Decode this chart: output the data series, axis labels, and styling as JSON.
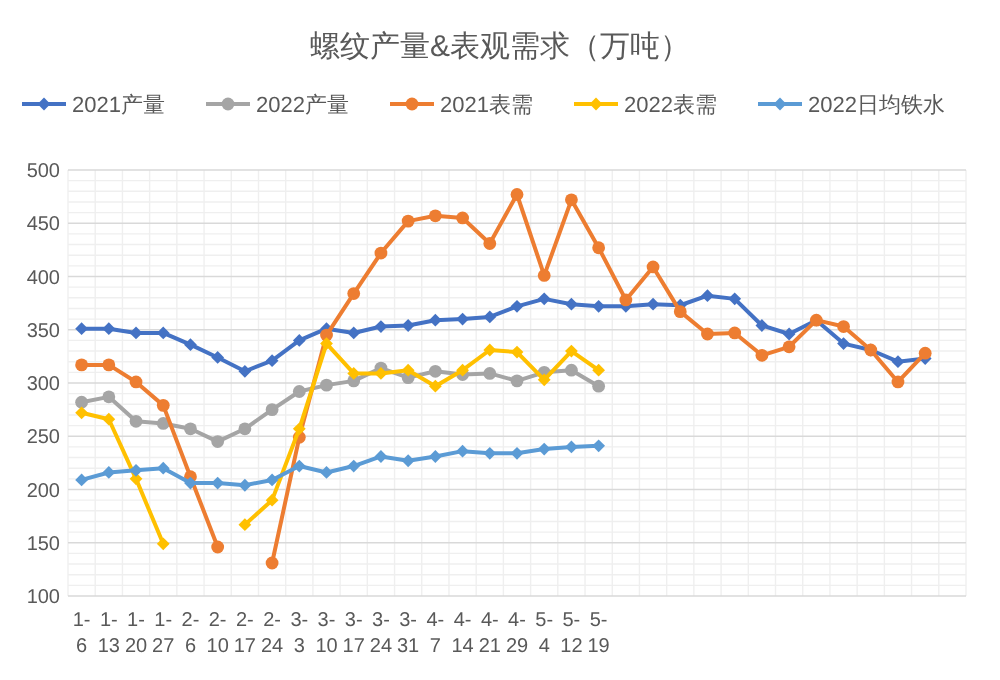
{
  "chart_data": {
    "type": "line",
    "title": "螺纹产量&表观需求（万吨）",
    "categories": [
      "1-6",
      "1-13",
      "1-20",
      "1-27",
      "2-6",
      "2-10",
      "2-17",
      "2-24",
      "3-3",
      "3-10",
      "3-17",
      "3-24",
      "3-31",
      "4-7",
      "4-14",
      "4-21",
      "4-29",
      "5-4",
      "5-12",
      "5-19",
      null,
      null,
      null,
      null,
      null,
      null,
      null,
      null,
      null,
      null,
      null,
      null,
      null
    ],
    "series": [
      {
        "name": "2021产量",
        "color": "#4472c4",
        "marker": "diamond",
        "values": [
          351,
          351,
          347,
          347,
          336,
          324,
          311,
          321,
          340,
          351,
          347,
          353,
          354,
          359,
          360,
          362,
          372,
          379,
          374,
          372,
          372,
          374,
          373,
          382,
          379,
          354,
          346,
          359,
          337,
          331,
          320,
          323,
          null
        ]
      },
      {
        "name": "2022产量",
        "color": "#a5a5a5",
        "marker": "circle",
        "values": [
          282,
          287,
          264,
          262,
          257,
          245,
          257,
          275,
          292,
          298,
          302,
          314,
          305,
          311,
          308,
          309,
          302,
          310,
          312,
          297,
          null,
          null,
          null,
          null,
          null,
          null,
          null,
          null,
          null,
          null,
          null,
          null,
          null
        ]
      },
      {
        "name": "2021表需",
        "color": "#ed7d31",
        "marker": "circle",
        "values": [
          317,
          317,
          301,
          279,
          212,
          146,
          null,
          131,
          249,
          345,
          384,
          422,
          452,
          457,
          455,
          431,
          477,
          401,
          472,
          427,
          378,
          409,
          367,
          346,
          347,
          326,
          334,
          359,
          353,
          331,
          301,
          328,
          null
        ]
      },
      {
        "name": "2022表需",
        "color": "#ffc000",
        "marker": "diamond",
        "values": [
          272,
          266,
          210,
          149,
          null,
          null,
          167,
          190,
          257,
          337,
          309,
          309,
          312,
          297,
          312,
          331,
          329,
          303,
          330,
          312,
          null,
          null,
          null,
          null,
          null,
          null,
          null,
          null,
          null,
          null,
          null,
          null,
          null
        ]
      },
      {
        "name": "2022日均铁水",
        "color": "#5b9bd5",
        "marker": "diamond",
        "values": [
          209,
          216,
          218,
          220,
          206,
          206,
          204,
          209,
          222,
          216,
          222,
          231,
          227,
          231,
          236,
          234,
          234,
          238,
          240,
          241,
          null,
          null,
          null,
          null,
          null,
          null,
          null,
          null,
          null,
          null,
          null,
          null,
          null
        ]
      }
    ],
    "ylim": [
      100,
      500
    ],
    "yticks": [
      100,
      150,
      200,
      250,
      300,
      350,
      400,
      450,
      500
    ],
    "grid": true,
    "legend": "top"
  }
}
